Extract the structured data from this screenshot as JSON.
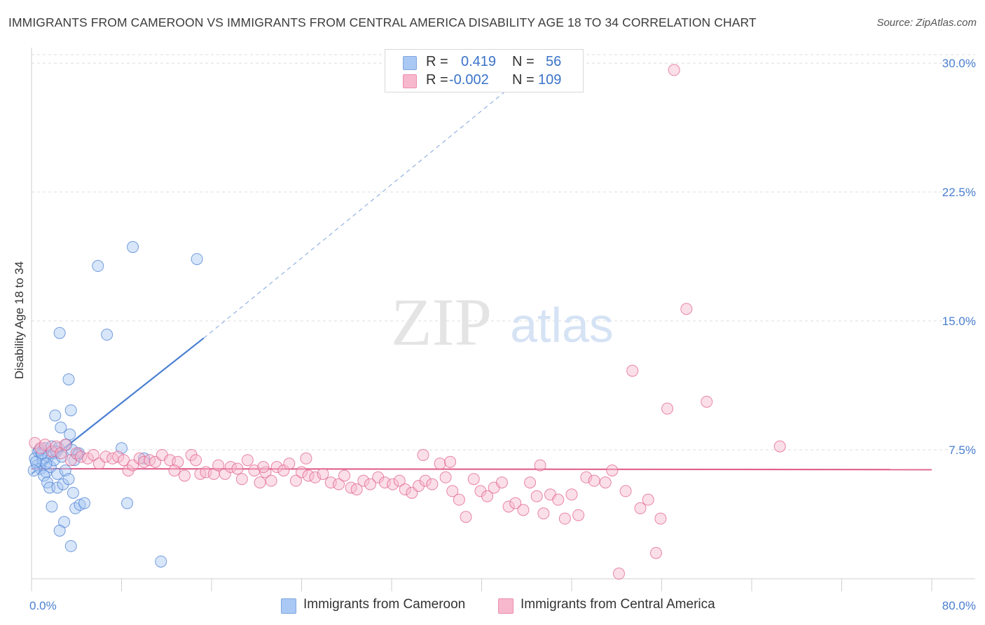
{
  "title": "IMMIGRANTS FROM CAMEROON VS IMMIGRANTS FROM CENTRAL AMERICA DISABILITY AGE 18 TO 34 CORRELATION CHART",
  "source": "Source: ZipAtlas.com",
  "watermark": {
    "zip": "ZIP",
    "atlas": "atlas"
  },
  "legend_top": {
    "rows": [
      {
        "r_label": "R =",
        "r_value": "0.419",
        "n_label": "N =",
        "n_value": "56",
        "color": "#a9c8f3"
      },
      {
        "r_label": "R =",
        "r_value": "-0.002",
        "n_label": "N =",
        "n_value": "109",
        "color": "#f7b7cc"
      }
    ]
  },
  "legend_bottom": [
    {
      "label": "Immigrants from Cameroon",
      "color": "#a9c8f3"
    },
    {
      "label": "Immigrants from Central America",
      "color": "#f7b7cc"
    }
  ],
  "chart_data": {
    "type": "scatter",
    "title": "IMMIGRANTS FROM CAMEROON VS IMMIGRANTS FROM CENTRAL AMERICA DISABILITY AGE 18 TO 34 CORRELATION CHART",
    "xlabel": "",
    "ylabel": "Disability Age 18 to 34",
    "xlim": [
      0,
      80
    ],
    "ylim": [
      0,
      30.9
    ],
    "x_tick_labels": [
      "0.0%",
      "80.0%"
    ],
    "y_ticks": [
      7.5,
      15.0,
      22.5,
      30.0
    ],
    "y_tick_labels": [
      "7.5%",
      "15.0%",
      "22.5%",
      "30.0%"
    ],
    "grid": "horizontal dashed",
    "series": [
      {
        "name": "Immigrants from Cameroon",
        "color": "#4a7fd0",
        "fill": "#a9c8f3",
        "trend": {
          "x": [
            0,
            15.3
          ],
          "y": [
            6.1,
            14.0
          ],
          "extended_to": [
            42.0,
            28.3
          ]
        },
        "points": [
          [
            0.3,
            7.0
          ],
          [
            0.5,
            6.6
          ],
          [
            0.6,
            7.4
          ],
          [
            0.8,
            6.4
          ],
          [
            0.9,
            7.2
          ],
          [
            1.0,
            6.9
          ],
          [
            1.2,
            7.6
          ],
          [
            1.3,
            6.2
          ],
          [
            1.5,
            7.1
          ],
          [
            1.7,
            6.5
          ],
          [
            1.8,
            7.7
          ],
          [
            2.0,
            7.3
          ],
          [
            0.4,
            6.8
          ],
          [
            0.7,
            7.5
          ],
          [
            1.1,
            6.0
          ],
          [
            1.4,
            5.6
          ],
          [
            1.6,
            5.3
          ],
          [
            1.8,
            4.2
          ],
          [
            2.0,
            6.9
          ],
          [
            2.1,
            9.5
          ],
          [
            2.3,
            5.3
          ],
          [
            2.3,
            6.1
          ],
          [
            2.4,
            7.6
          ],
          [
            2.5,
            14.3
          ],
          [
            2.6,
            8.8
          ],
          [
            2.8,
            5.5
          ],
          [
            2.9,
            3.3
          ],
          [
            2.5,
            2.8
          ],
          [
            3.0,
            6.3
          ],
          [
            3.1,
            7.8
          ],
          [
            3.3,
            5.8
          ],
          [
            3.4,
            8.4
          ],
          [
            3.6,
            7.5
          ],
          [
            3.3,
            11.6
          ],
          [
            3.5,
            9.8
          ],
          [
            3.7,
            5.0
          ],
          [
            3.9,
            4.1
          ],
          [
            4.2,
            7.3
          ],
          [
            3.5,
            1.9
          ],
          [
            4.3,
            4.3
          ],
          [
            4.7,
            4.4
          ],
          [
            4.1,
            7.2
          ],
          [
            5.9,
            18.2
          ],
          [
            6.7,
            14.2
          ],
          [
            8.0,
            7.6
          ],
          [
            8.5,
            4.4
          ],
          [
            9.0,
            19.3
          ],
          [
            10.0,
            7.0
          ],
          [
            11.5,
            1.0
          ],
          [
            14.7,
            18.6
          ],
          [
            0.2,
            6.3
          ],
          [
            0.9,
            7.3
          ],
          [
            1.3,
            6.7
          ],
          [
            2.2,
            7.4
          ],
          [
            2.7,
            7.1
          ],
          [
            3.8,
            6.9
          ]
        ]
      },
      {
        "name": "Immigrants from Central America",
        "color": "#e0608e",
        "fill": "#f7b7cc",
        "trend": {
          "x": [
            0,
            80
          ],
          "y": [
            6.4,
            6.35
          ]
        },
        "points": [
          [
            0.3,
            7.9
          ],
          [
            0.8,
            7.6
          ],
          [
            1.2,
            7.8
          ],
          [
            1.8,
            7.4
          ],
          [
            2.2,
            7.7
          ],
          [
            2.6,
            7.3
          ],
          [
            3.0,
            7.8
          ],
          [
            3.5,
            6.9
          ],
          [
            4.0,
            7.3
          ],
          [
            4.4,
            7.1
          ],
          [
            5.0,
            7.0
          ],
          [
            5.5,
            7.2
          ],
          [
            6.0,
            6.7
          ],
          [
            6.6,
            7.1
          ],
          [
            7.2,
            7.0
          ],
          [
            7.7,
            7.1
          ],
          [
            8.2,
            6.9
          ],
          [
            8.6,
            6.3
          ],
          [
            9.0,
            6.6
          ],
          [
            9.6,
            7.0
          ],
          [
            10.0,
            6.8
          ],
          [
            10.5,
            6.9
          ],
          [
            11.0,
            6.8
          ],
          [
            11.6,
            7.2
          ],
          [
            12.3,
            6.9
          ],
          [
            13.0,
            6.8
          ],
          [
            13.6,
            6.0
          ],
          [
            14.2,
            7.2
          ],
          [
            14.6,
            6.9
          ],
          [
            15.0,
            6.1
          ],
          [
            15.5,
            6.2
          ],
          [
            16.2,
            6.1
          ],
          [
            16.6,
            6.6
          ],
          [
            17.2,
            6.1
          ],
          [
            17.7,
            6.5
          ],
          [
            18.3,
            6.4
          ],
          [
            18.7,
            5.8
          ],
          [
            19.2,
            6.9
          ],
          [
            19.8,
            6.3
          ],
          [
            20.3,
            5.6
          ],
          [
            20.8,
            6.2
          ],
          [
            21.3,
            5.7
          ],
          [
            21.8,
            6.5
          ],
          [
            22.4,
            6.3
          ],
          [
            22.9,
            6.7
          ],
          [
            23.5,
            5.7
          ],
          [
            24.0,
            6.2
          ],
          [
            24.6,
            6.0
          ],
          [
            25.2,
            5.9
          ],
          [
            25.9,
            6.1
          ],
          [
            26.6,
            5.6
          ],
          [
            27.3,
            5.5
          ],
          [
            27.8,
            6.0
          ],
          [
            28.4,
            5.3
          ],
          [
            28.9,
            5.2
          ],
          [
            29.5,
            5.7
          ],
          [
            30.1,
            5.5
          ],
          [
            30.8,
            5.9
          ],
          [
            31.4,
            5.6
          ],
          [
            32.1,
            5.5
          ],
          [
            32.7,
            5.7
          ],
          [
            33.2,
            5.2
          ],
          [
            33.8,
            5.0
          ],
          [
            34.4,
            5.4
          ],
          [
            35.0,
            5.7
          ],
          [
            35.6,
            5.5
          ],
          [
            36.3,
            6.7
          ],
          [
            36.8,
            5.9
          ],
          [
            37.4,
            5.1
          ],
          [
            38.0,
            4.6
          ],
          [
            38.6,
            3.6
          ],
          [
            39.3,
            5.8
          ],
          [
            39.9,
            5.1
          ],
          [
            40.5,
            4.8
          ],
          [
            41.1,
            5.3
          ],
          [
            41.8,
            5.6
          ],
          [
            42.4,
            4.2
          ],
          [
            43.0,
            4.4
          ],
          [
            43.7,
            4.0
          ],
          [
            44.3,
            5.6
          ],
          [
            44.9,
            4.8
          ],
          [
            45.5,
            3.8
          ],
          [
            46.1,
            4.9
          ],
          [
            46.8,
            4.6
          ],
          [
            47.4,
            3.5
          ],
          [
            48.0,
            4.9
          ],
          [
            48.6,
            3.7
          ],
          [
            49.3,
            5.9
          ],
          [
            50.0,
            5.7
          ],
          [
            51.0,
            5.6
          ],
          [
            51.6,
            6.3
          ],
          [
            52.2,
            0.3
          ],
          [
            52.8,
            5.1
          ],
          [
            53.4,
            12.1
          ],
          [
            54.1,
            4.1
          ],
          [
            54.8,
            4.6
          ],
          [
            55.5,
            1.5
          ],
          [
            55.9,
            3.5
          ],
          [
            56.5,
            9.9
          ],
          [
            57.1,
            29.6
          ],
          [
            58.2,
            15.7
          ],
          [
            60.0,
            10.3
          ],
          [
            66.5,
            7.7
          ],
          [
            34.8,
            7.2
          ],
          [
            37.2,
            6.8
          ],
          [
            20.6,
            6.5
          ],
          [
            24.4,
            7.0
          ],
          [
            45.2,
            6.6
          ],
          [
            12.7,
            6.3
          ]
        ]
      }
    ]
  }
}
